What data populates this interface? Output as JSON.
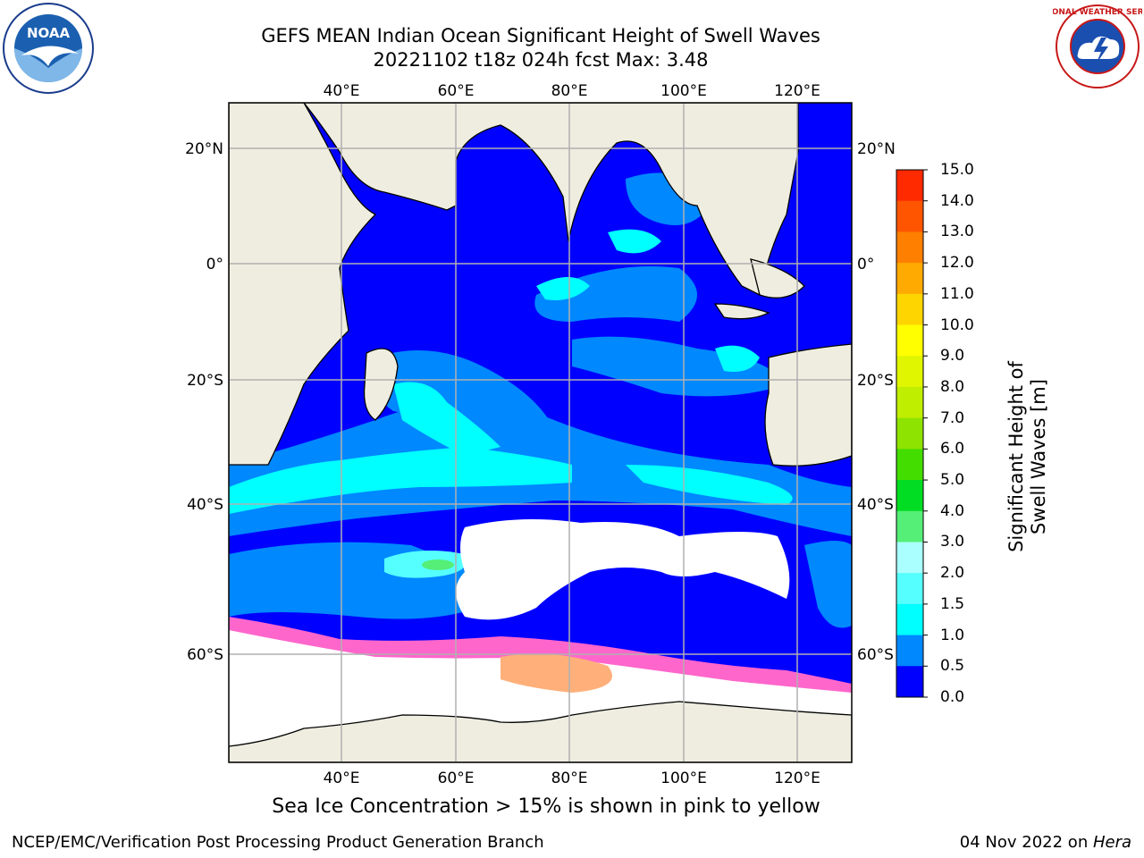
{
  "title": {
    "line1": "GEFS MEAN Indian Ocean Significant Height of Swell Waves",
    "line2": "20221102 t18z 024h fcst   Max: 3.48"
  },
  "logos": {
    "left": "noaa-logo",
    "left_text": "NOAA",
    "right": "national-weather-service-logo",
    "right_text": "NATIONAL WEATHER SERVICE"
  },
  "map": {
    "lon_ticks": [
      "40°E",
      "60°E",
      "80°E",
      "100°E",
      "120°E"
    ],
    "lat_ticks": [
      "20°N",
      "0°",
      "20°S",
      "40°S",
      "60°S"
    ],
    "ocean_color": "#0000ff",
    "land_color": "#eeede0",
    "ice_color": "#ffffff",
    "grid_color": "#b0b0b0"
  },
  "colorbar": {
    "label": "Significant Height of Swell Waves [m]",
    "ticks": [
      "15.0",
      "14.0",
      "13.0",
      "12.0",
      "11.0",
      "10.0",
      "9.0",
      "8.0",
      "7.0",
      "6.0",
      "5.0",
      "4.0",
      "3.0",
      "2.0",
      "1.5",
      "1.0",
      "0.5",
      "0.0"
    ],
    "colors": [
      "#ff0000",
      "#ff2a00",
      "#ff5500",
      "#ff8000",
      "#ffaa00",
      "#ffd500",
      "#ffff00",
      "#e0f500",
      "#c0ee00",
      "#8ee300",
      "#44dd00",
      "#00dd22",
      "#55ee77",
      "#aaffff",
      "#55ffff",
      "#00ffff",
      "#0088ff",
      "#0000ff"
    ]
  },
  "caption": "Sea Ice Concentration > 15% is shown in pink to yellow",
  "footer": {
    "left": "NCEP/EMC/Verification Post Processing Product Generation Branch",
    "right_prefix": "04 Nov 2022 on ",
    "right_italic": "Hera"
  }
}
